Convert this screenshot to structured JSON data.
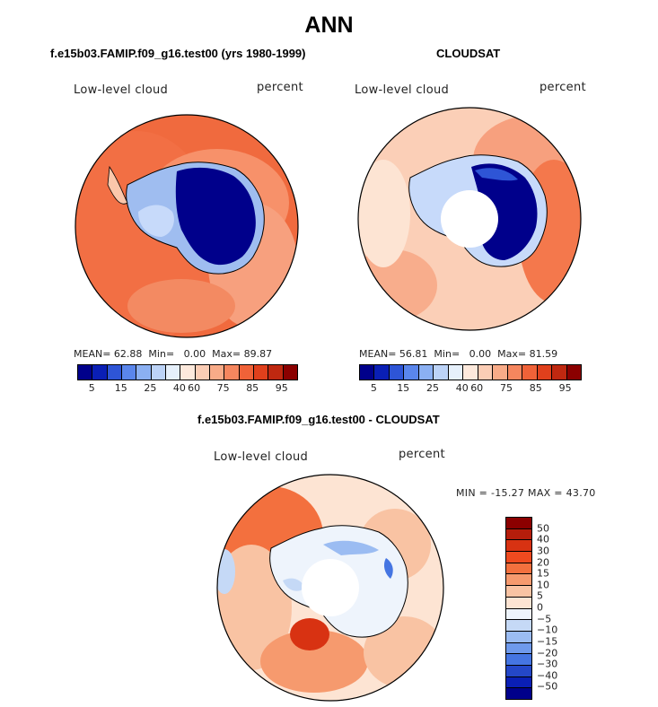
{
  "main_title": "ANN",
  "panels": [
    {
      "title": "f.e15b03.FAMIP.f09_g16.test00 (yrs 1980-1999)",
      "variable_label": "Low-level cloud",
      "units_label": "percent",
      "stats": {
        "mean_label": "MEAN=",
        "mean_value": "62.88",
        "min_label": "Min=",
        "min_value": "0.00",
        "max_label": "Max=",
        "max_value": "89.87"
      },
      "colorbar_ticks": [
        "5",
        "15",
        "25",
        "40",
        "60",
        "75",
        "85",
        "95"
      ]
    },
    {
      "title": "CLOUDSAT",
      "variable_label": "Low-level cloud",
      "units_label": "percent",
      "stats": {
        "mean_label": "MEAN=",
        "mean_value": "56.81",
        "min_label": "Min=",
        "min_value": "0.00",
        "max_label": "Max=",
        "max_value": "81.59"
      },
      "colorbar_ticks": [
        "5",
        "15",
        "25",
        "40",
        "60",
        "75",
        "85",
        "95"
      ]
    }
  ],
  "diff_panel": {
    "title": "f.e15b03.FAMIP.f09_g16.test00 - CLOUDSAT",
    "variable_label": "Low-level cloud",
    "units_label": "percent",
    "minmax_text": "MIN = -15.27 MAX =  43.70",
    "colorbar_ticks": [
      "50",
      "40",
      "30",
      "20",
      "15",
      "10",
      "5",
      "0",
      "−5",
      "−10",
      "−15",
      "−20",
      "−30",
      "−40",
      "−50"
    ]
  },
  "colors": {
    "seq_scale": [
      "#00008b",
      "#0a1fb5",
      "#2e55d6",
      "#5a86ec",
      "#8bb0f2",
      "#bcd3f7",
      "#e6f0fb",
      "#fde9dc",
      "#fbcdb5",
      "#f8ab88",
      "#f5865e",
      "#f06238",
      "#e0401c",
      "#bf2810",
      "#8b0000"
    ],
    "diff_scale": [
      "#8b0000",
      "#b51d0b",
      "#d83212",
      "#ef4a1f",
      "#f3703e",
      "#f69a6e",
      "#f9c3a3",
      "#fde4d3",
      "#eef4fc",
      "#c5d9f6",
      "#9bbcf2",
      "#6f9aec",
      "#4575e2",
      "#2447c8",
      "#0a1fb5",
      "#00008b"
    ]
  }
}
